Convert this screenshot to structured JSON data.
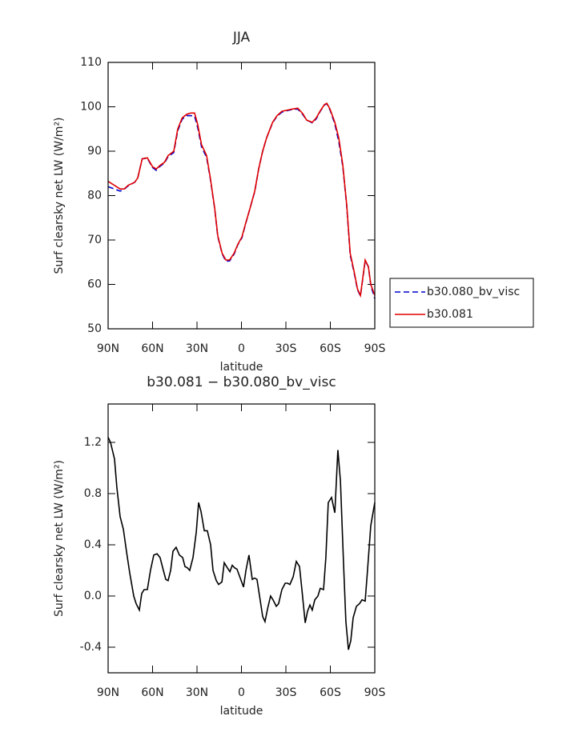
{
  "chart_data": [
    {
      "type": "line",
      "title": "JJA",
      "xlabel": "latitude",
      "ylabel": "Surf clearsky net LW (W/m²)",
      "xlim": [
        90,
        -90
      ],
      "xticks": [
        {
          "value": 90,
          "label": "90N"
        },
        {
          "value": 60,
          "label": "60N"
        },
        {
          "value": 30,
          "label": "30N"
        },
        0,
        {
          "value": -30,
          "label": "30S"
        },
        {
          "value": -60,
          "label": "60S"
        },
        {
          "value": -90,
          "label": "90S"
        }
      ],
      "ylim": [
        50,
        110
      ],
      "yticks": [
        50,
        60,
        70,
        80,
        90,
        100,
        110
      ],
      "legend": "right",
      "x": [
        90,
        81.9,
        79.2,
        76.5,
        72,
        70,
        67,
        63.5,
        60,
        57.5,
        55,
        52,
        49.5,
        45.7,
        43,
        40,
        37,
        34.3,
        31.6,
        29.5,
        27,
        23.5,
        21,
        18,
        16,
        13,
        10.5,
        8,
        5,
        2.5,
        -0.3,
        -3,
        -5.7,
        -9,
        -11.6,
        -14.3,
        -17,
        -21,
        -24,
        -27.3,
        -30.5,
        -34.3,
        -38,
        -41.3,
        -44,
        -47.8,
        -50.5,
        -53,
        -56,
        -57.6,
        -59.8,
        -63,
        -65.7,
        -68.4,
        -71,
        -73.4,
        -76,
        -78.3,
        -80.3,
        -83.5,
        -85.7,
        -87.3,
        -90
      ],
      "series": [
        {
          "name": "b30.080_bv_visc",
          "color": "#0000cc",
          "dash": true,
          "values": [
            82.0,
            81.0,
            81.4,
            82.2,
            83.0,
            84.0,
            88.3,
            88.4,
            86.3,
            85.7,
            86.6,
            87.3,
            88.8,
            89.7,
            94.6,
            97.2,
            98.0,
            98.0,
            97.9,
            95.3,
            91.0,
            88.6,
            83.8,
            76.9,
            70.8,
            66.9,
            65.2,
            65.3,
            66.8,
            68.9,
            70.5,
            73.9,
            77.0,
            80.9,
            86.0,
            90.0,
            93.0,
            96.4,
            97.9,
            98.8,
            99.1,
            99.4,
            99.5,
            98.3,
            97.0,
            96.4,
            97.3,
            98.9,
            100.4,
            100.7,
            99.3,
            96.1,
            92.2,
            86.6,
            77.8,
            66.6,
            62.7,
            58.8,
            57.4,
            65.3,
            64.0,
            59.8,
            56.8
          ]
        },
        {
          "name": "b30.081",
          "color": "#e00000",
          "dash": false,
          "values": [
            83.2,
            81.5,
            81.5,
            82.3,
            83.0,
            84.0,
            88.3,
            88.5,
            86.5,
            86.0,
            86.8,
            87.5,
            89.0,
            90.0,
            95.0,
            97.5,
            98.3,
            98.6,
            98.6,
            96.0,
            91.5,
            89.0,
            84.0,
            77.0,
            71.0,
            67.0,
            65.5,
            65.5,
            67.0,
            69.0,
            70.7,
            74.0,
            77.0,
            81.0,
            86.0,
            90.0,
            93.0,
            96.5,
            98.0,
            99.0,
            99.2,
            99.5,
            99.7,
            98.5,
            97.0,
            96.5,
            97.5,
            99.0,
            100.5,
            100.8,
            99.5,
            96.5,
            93.0,
            87.0,
            78.0,
            67.0,
            63.0,
            59.0,
            57.5,
            65.5,
            64.0,
            60.0,
            57.5
          ]
        }
      ]
    },
    {
      "type": "line",
      "title": "b30.081 − b30.080_bv_visc",
      "xlabel": "latitude",
      "ylabel": "Surf clearsky net LW (W/m²)",
      "xlim": [
        90,
        -90
      ],
      "xticks": [
        {
          "value": 90,
          "label": "90N"
        },
        {
          "value": 60,
          "label": "60N"
        },
        {
          "value": 30,
          "label": "30N"
        },
        0,
        {
          "value": -30,
          "label": "30S"
        },
        {
          "value": -60,
          "label": "60S"
        },
        {
          "value": -90,
          "label": "90S"
        }
      ],
      "ylim": [
        -0.6,
        1.5
      ],
      "yticks": [
        -0.4,
        {
          "value": 0,
          "label": "0.0"
        },
        0.4,
        0.8,
        1.2
      ],
      "x": [
        90,
        88.4,
        85.7,
        84.1,
        81.9,
        79.7,
        77.6,
        75.4,
        72.7,
        71.1,
        68.9,
        67.3,
        65.7,
        63.5,
        61.4,
        59.2,
        57.0,
        54.9,
        52.7,
        51.1,
        49.5,
        47.8,
        46.2,
        44.1,
        41.9,
        39.7,
        38.1,
        36.5,
        34.9,
        32.7,
        30.5,
        28.9,
        27.3,
        25.1,
        23.0,
        20.8,
        19.2,
        17.0,
        15.4,
        13.2,
        11.6,
        9.5,
        7.8,
        6.2,
        4.6,
        3.0,
        0.8,
        -1.4,
        -3.0,
        -5.1,
        -7.3,
        -8.9,
        -10.5,
        -12.2,
        -14.3,
        -15.9,
        -17.6,
        -19.7,
        -21.3,
        -23.5,
        -25.1,
        -27.3,
        -29.5,
        -31.1,
        -32.7,
        -34.9,
        -37.0,
        -39.2,
        -40.8,
        -43.0,
        -44.6,
        -46.2,
        -47.8,
        -49.5,
        -51.6,
        -53.2,
        -55.4,
        -57.0,
        -58.6,
        -60.8,
        -63.0,
        -65.1,
        -66.8,
        -68.9,
        -70.5,
        -72.2,
        -73.8,
        -75.4,
        -77.6,
        -79.7,
        -81.4,
        -83.5,
        -85.1,
        -87.3,
        -90
      ],
      "series": [
        {
          "name": null,
          "color": "#000000",
          "dash": false,
          "values": [
            1.24,
            1.2,
            1.07,
            0.85,
            0.62,
            0.52,
            0.35,
            0.18,
            0.0,
            -0.06,
            -0.11,
            0.02,
            0.05,
            0.05,
            0.2,
            0.32,
            0.33,
            0.3,
            0.2,
            0.13,
            0.12,
            0.2,
            0.35,
            0.38,
            0.32,
            0.3,
            0.23,
            0.22,
            0.2,
            0.3,
            0.5,
            0.73,
            0.66,
            0.51,
            0.51,
            0.4,
            0.2,
            0.12,
            0.09,
            0.11,
            0.26,
            0.22,
            0.19,
            0.24,
            0.22,
            0.21,
            0.14,
            0.07,
            0.2,
            0.32,
            0.13,
            0.14,
            0.13,
            0.0,
            -0.16,
            -0.2,
            -0.1,
            0.0,
            -0.03,
            -0.08,
            -0.06,
            0.05,
            0.1,
            0.1,
            0.09,
            0.15,
            0.27,
            0.23,
            0.05,
            -0.21,
            -0.12,
            -0.07,
            -0.11,
            -0.03,
            0.0,
            0.06,
            0.05,
            0.3,
            0.73,
            0.77,
            0.65,
            1.14,
            0.9,
            0.25,
            -0.2,
            -0.42,
            -0.35,
            -0.17,
            -0.08,
            -0.06,
            -0.03,
            -0.04,
            0.2,
            0.55,
            0.73
          ]
        }
      ]
    }
  ]
}
